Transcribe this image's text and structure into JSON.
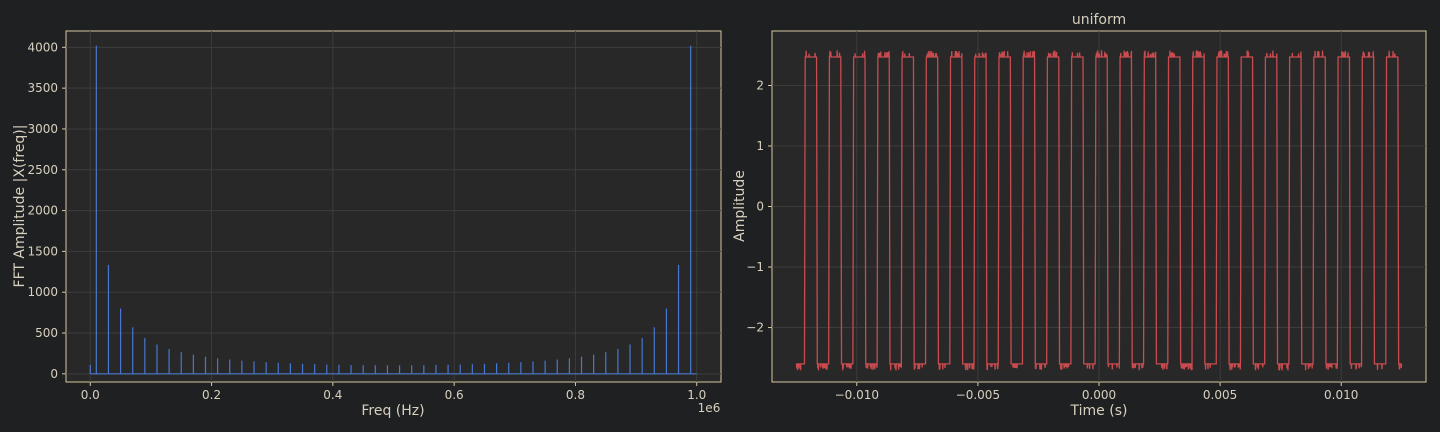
{
  "colors": {
    "background": "#1e2022",
    "axes_bg": "#282828",
    "frame": "#d8c8a0",
    "text": "#d8d0bf",
    "grid": "#3c3c3c"
  },
  "chart_data": [
    {
      "type": "bar",
      "title": "",
      "xlabel": "Freq (Hz)",
      "ylabel": "FFT Amplitude |X(freq)|",
      "x_offset_label": "1e6",
      "xlim": [
        -0.04,
        1.04
      ],
      "ylim": [
        -100,
        4200
      ],
      "xticks": [
        "0.0",
        "0.2",
        "0.4",
        "0.6",
        "0.8",
        "1.0"
      ],
      "yticks": [
        "0",
        "500",
        "1000",
        "1500",
        "2000",
        "2500",
        "3000",
        "3500",
        "4000"
      ],
      "grid": true,
      "color": "#4878cf",
      "baseline": {
        "x_start": 0.0,
        "x_end": 0.9999,
        "value": 0
      },
      "stems": [
        {
          "x": 0.0,
          "y": 110
        },
        {
          "x": 0.01,
          "y": 4020
        },
        {
          "x": 0.03,
          "y": 1335
        },
        {
          "x": 0.05,
          "y": 800
        },
        {
          "x": 0.07,
          "y": 570
        },
        {
          "x": 0.09,
          "y": 440
        },
        {
          "x": 0.11,
          "y": 360
        },
        {
          "x": 0.13,
          "y": 305
        },
        {
          "x": 0.15,
          "y": 265
        },
        {
          "x": 0.17,
          "y": 235
        },
        {
          "x": 0.19,
          "y": 210
        },
        {
          "x": 0.21,
          "y": 190
        },
        {
          "x": 0.23,
          "y": 175
        },
        {
          "x": 0.25,
          "y": 162
        },
        {
          "x": 0.27,
          "y": 152
        },
        {
          "x": 0.29,
          "y": 143
        },
        {
          "x": 0.31,
          "y": 135
        },
        {
          "x": 0.33,
          "y": 129
        },
        {
          "x": 0.35,
          "y": 123
        },
        {
          "x": 0.37,
          "y": 118
        },
        {
          "x": 0.39,
          "y": 114
        },
        {
          "x": 0.41,
          "y": 111
        },
        {
          "x": 0.43,
          "y": 108
        },
        {
          "x": 0.45,
          "y": 106
        },
        {
          "x": 0.47,
          "y": 104
        },
        {
          "x": 0.49,
          "y": 103
        },
        {
          "x": 0.51,
          "y": 103
        },
        {
          "x": 0.53,
          "y": 104
        },
        {
          "x": 0.55,
          "y": 106
        },
        {
          "x": 0.57,
          "y": 108
        },
        {
          "x": 0.59,
          "y": 111
        },
        {
          "x": 0.61,
          "y": 114
        },
        {
          "x": 0.63,
          "y": 118
        },
        {
          "x": 0.65,
          "y": 123
        },
        {
          "x": 0.67,
          "y": 129
        },
        {
          "x": 0.69,
          "y": 135
        },
        {
          "x": 0.71,
          "y": 143
        },
        {
          "x": 0.73,
          "y": 152
        },
        {
          "x": 0.75,
          "y": 162
        },
        {
          "x": 0.77,
          "y": 175
        },
        {
          "x": 0.79,
          "y": 190
        },
        {
          "x": 0.81,
          "y": 210
        },
        {
          "x": 0.83,
          "y": 235
        },
        {
          "x": 0.85,
          "y": 265
        },
        {
          "x": 0.87,
          "y": 305
        },
        {
          "x": 0.89,
          "y": 360
        },
        {
          "x": 0.91,
          "y": 440
        },
        {
          "x": 0.93,
          "y": 570
        },
        {
          "x": 0.95,
          "y": 800
        },
        {
          "x": 0.97,
          "y": 1335
        },
        {
          "x": 0.99,
          "y": 4020
        }
      ]
    },
    {
      "type": "line",
      "title": "uniform",
      "xlabel": "Time (s)",
      "ylabel": "Amplitude",
      "xlim": [
        -0.0135,
        0.0135
      ],
      "ylim": [
        -2.9,
        2.9
      ],
      "xticks": [
        "−0.010",
        "−0.005",
        "0.000",
        "0.005",
        "0.010"
      ],
      "yticks": [
        "−2",
        "−1",
        "0",
        "1",
        "2"
      ],
      "grid": true,
      "color": "#c84b4f",
      "signal": {
        "t_start": -0.0125,
        "t_end": 0.0125,
        "period": 0.001,
        "first_rise": -0.01216,
        "high": 2.47,
        "low": -2.6,
        "ripple": 0.1,
        "start_level": "low"
      }
    }
  ]
}
